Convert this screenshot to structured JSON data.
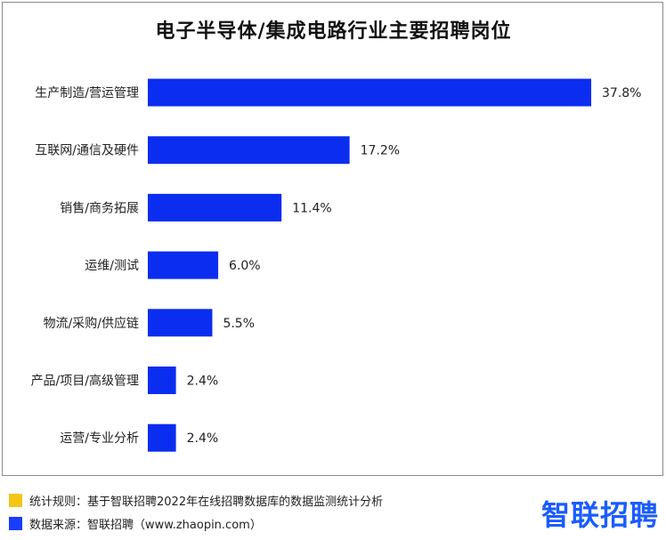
{
  "chart_data": {
    "type": "bar",
    "orientation": "horizontal",
    "title": "电子半导体/集成电路行业主要招聘岗位",
    "categories": [
      "生产制造/营运管理",
      "互联网/通信及硬件",
      "销售/商务拓展",
      "运维/测试",
      "物流/采购/供应链",
      "产品/项目/高级管理",
      "运营/专业分析"
    ],
    "values": [
      37.8,
      17.2,
      11.4,
      6.0,
      5.5,
      2.4,
      2.4
    ],
    "value_labels": [
      "37.8%",
      "17.2%",
      "11.4%",
      "6.0%",
      "5.5%",
      "2.4%",
      "2.4%"
    ],
    "unit": "%",
    "xlim": [
      0,
      37.8
    ],
    "grid": false,
    "legend": "none",
    "bar_color": "#0b2df0"
  },
  "footer": {
    "notes": [
      {
        "text": "统计规则：基于智联招聘2022年在线招聘数据库的数据监测统计分析",
        "color": "#f5c518"
      },
      {
        "text": "数据来源：智联招聘（www.zhaopin.com）",
        "color": "#1a3cff"
      }
    ],
    "logo": "智联招聘",
    "logo_color": "#1a5cff"
  }
}
